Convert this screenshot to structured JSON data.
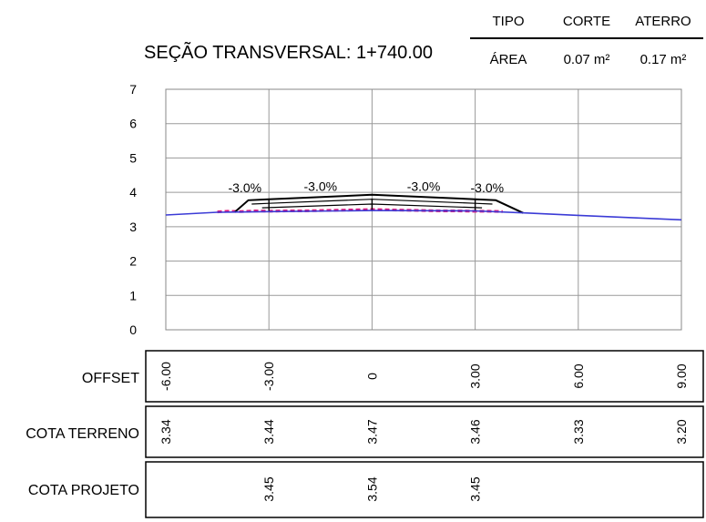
{
  "summary": {
    "headers": {
      "tipo": "TIPO",
      "corte": "CORTE",
      "aterro": "ATERRO"
    },
    "row": {
      "tipo": "ÁREA",
      "corte": "0.07 m²",
      "aterro": "0.17 m²"
    }
  },
  "title": "SEÇÃO TRANSVERSAL: 1+740.00",
  "y_ticks": [
    "0",
    "1",
    "2",
    "3",
    "4",
    "5",
    "6",
    "7"
  ],
  "slopes": [
    "-3.0%",
    "-3.0%",
    "-3.0%",
    "-3.0%"
  ],
  "table": {
    "offset_label": "OFFSET",
    "terreno_label": "COTA TERRENO",
    "projeto_label": "COTA PROJETO",
    "offsets": [
      "-6.00",
      "-3.00",
      "0",
      "3.00",
      "6.00",
      "9.00"
    ],
    "terreno": [
      "3.34",
      "3.44",
      "3.47",
      "3.46",
      "3.33",
      "3.20"
    ],
    "projeto": [
      "",
      "3.45",
      "3.54",
      "3.45",
      "",
      ""
    ]
  },
  "chart_data": {
    "type": "line",
    "title": "SEÇÃO TRANSVERSAL: 1+740.00",
    "xlim": [
      -6,
      9
    ],
    "ylim": [
      0,
      7
    ],
    "x_gridlines": [
      -6,
      -3,
      0,
      3,
      6,
      9
    ],
    "y_gridlines": [
      0,
      1,
      2,
      3,
      4,
      5,
      6,
      7
    ],
    "grid": true,
    "colors": {
      "terrain": "#3b3bd6",
      "design": "#000000",
      "marks": "#e0197d",
      "grid": "#9a9a9a"
    },
    "terrain": {
      "x": [
        -6,
        -4.5,
        -3,
        0,
        3,
        4.5,
        6,
        9
      ],
      "y": [
        3.34,
        3.42,
        3.44,
        3.47,
        3.46,
        3.4,
        3.33,
        3.2
      ]
    },
    "design_top": {
      "x": [
        -4,
        -3.6,
        -3,
        0,
        3,
        3.6,
        4.4
      ],
      "y": [
        3.42,
        3.77,
        3.8,
        3.93,
        3.8,
        3.77,
        3.4
      ]
    },
    "design_layers": [
      {
        "x": [
          -3.5,
          -3,
          0,
          3,
          3.5
        ],
        "y": [
          3.66,
          3.68,
          3.8,
          3.68,
          3.66
        ]
      },
      {
        "x": [
          -3.2,
          0,
          3.2
        ],
        "y": [
          3.55,
          3.66,
          3.55
        ]
      }
    ],
    "cut_marks": {
      "x": [
        -4.5,
        -4.2,
        -3.8,
        -3.4,
        -3,
        -2.5,
        -2,
        -1.5,
        -1,
        -0.5,
        0,
        0.5,
        1,
        1.5,
        2,
        2.5,
        3,
        3.4,
        3.8
      ],
      "y": [
        3.43,
        3.45,
        3.44,
        3.46,
        3.45,
        3.46,
        3.46,
        3.47,
        3.48,
        3.49,
        3.5,
        3.49,
        3.48,
        3.47,
        3.46,
        3.46,
        3.45,
        3.45,
        3.44
      ]
    }
  }
}
